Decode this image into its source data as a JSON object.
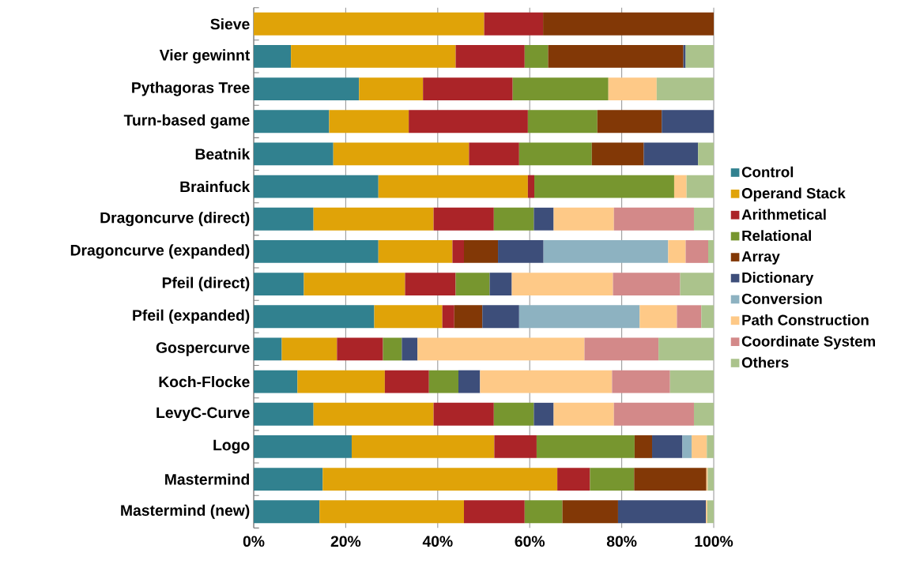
{
  "chart_data": {
    "type": "bar",
    "orientation": "horizontal",
    "stacked": true,
    "categories": [
      "Sieve",
      "Vier gewinnt",
      "Pythagoras Tree",
      "Turn-based game",
      "Beatnik",
      "Brainfuck",
      "Dragoncurve (direct)",
      "Dragoncurve (expanded)",
      "Pfeil (direct)",
      "Pfeil (expanded)",
      "Gospercurve",
      "Koch-Flocke",
      "LevyC-Curve",
      "Logo",
      "Mastermind",
      "Mastermind (new)"
    ],
    "series": [
      {
        "name": "Control",
        "color": "#31818f",
        "values": [
          0,
          8.1,
          22.9,
          16.4,
          17.3,
          27.1,
          13.0,
          27.1,
          10.9,
          26.2,
          6.1,
          9.5,
          13.0,
          21.3,
          15.0,
          14.3
        ]
      },
      {
        "name": "Operand Stack",
        "color": "#e0a308",
        "values": [
          50.1,
          35.8,
          13.9,
          17.3,
          29.5,
          32.5,
          26.1,
          16.1,
          22.0,
          14.8,
          12.0,
          19.0,
          26.1,
          31.0,
          51.0,
          31.4
        ]
      },
      {
        "name": "Arithmetical",
        "color": "#ab2428",
        "values": [
          12.8,
          15.0,
          19.5,
          25.9,
          10.9,
          1.4,
          13.1,
          2.5,
          11.0,
          2.6,
          10.0,
          9.6,
          13.1,
          9.2,
          7.1,
          13.2
        ]
      },
      {
        "name": "Relational",
        "color": "#77962f",
        "values": [
          0,
          5.1,
          20.8,
          15.1,
          15.8,
          30.4,
          8.7,
          0,
          7.4,
          0,
          4.1,
          6.4,
          8.7,
          21.3,
          9.6,
          8.2
        ]
      },
      {
        "name": "Array",
        "color": "#823806",
        "values": [
          37.1,
          29.4,
          0,
          14.0,
          11.3,
          0,
          0,
          7.4,
          0,
          6.1,
          0,
          0,
          0,
          3.8,
          15.7,
          12.1
        ]
      },
      {
        "name": "Dictionary",
        "color": "#3d4e7a",
        "values": [
          0,
          0.5,
          0,
          11.3,
          11.8,
          0,
          4.3,
          9.9,
          4.8,
          8.0,
          3.4,
          4.7,
          4.3,
          6.6,
          0,
          19.1
        ]
      },
      {
        "name": "Conversion",
        "color": "#8db2c1",
        "values": [
          0,
          0,
          0,
          0,
          0,
          0,
          0,
          27.1,
          0,
          26.2,
          0,
          0,
          0,
          2.0,
          0,
          0
        ]
      },
      {
        "name": "Path Construction",
        "color": "#fec987",
        "values": [
          0,
          0,
          10.5,
          0,
          0,
          2.7,
          13.1,
          3.8,
          22.0,
          8.1,
          36.3,
          28.7,
          13.1,
          3.3,
          0.3,
          0.3
        ]
      },
      {
        "name": "Coordinate System",
        "color": "#d38989",
        "values": [
          0,
          0,
          0,
          0,
          0,
          0,
          17.4,
          4.9,
          14.6,
          5.3,
          16.1,
          12.6,
          17.4,
          0,
          0,
          0
        ]
      },
      {
        "name": "Others",
        "color": "#abc38c",
        "values": [
          0,
          6.1,
          12.4,
          0,
          3.4,
          5.9,
          4.3,
          1.2,
          7.3,
          2.7,
          12.0,
          9.5,
          4.3,
          1.5,
          1.3,
          1.4
        ]
      }
    ],
    "xlim": [
      0,
      100
    ],
    "xticks": [
      {
        "value": 0,
        "label": "0%"
      },
      {
        "value": 20,
        "label": "20%"
      },
      {
        "value": 40,
        "label": "40%"
      },
      {
        "value": 60,
        "label": "60%"
      },
      {
        "value": 80,
        "label": "80%"
      },
      {
        "value": 100,
        "label": "100%"
      }
    ],
    "grid": "x",
    "legend": "right"
  }
}
